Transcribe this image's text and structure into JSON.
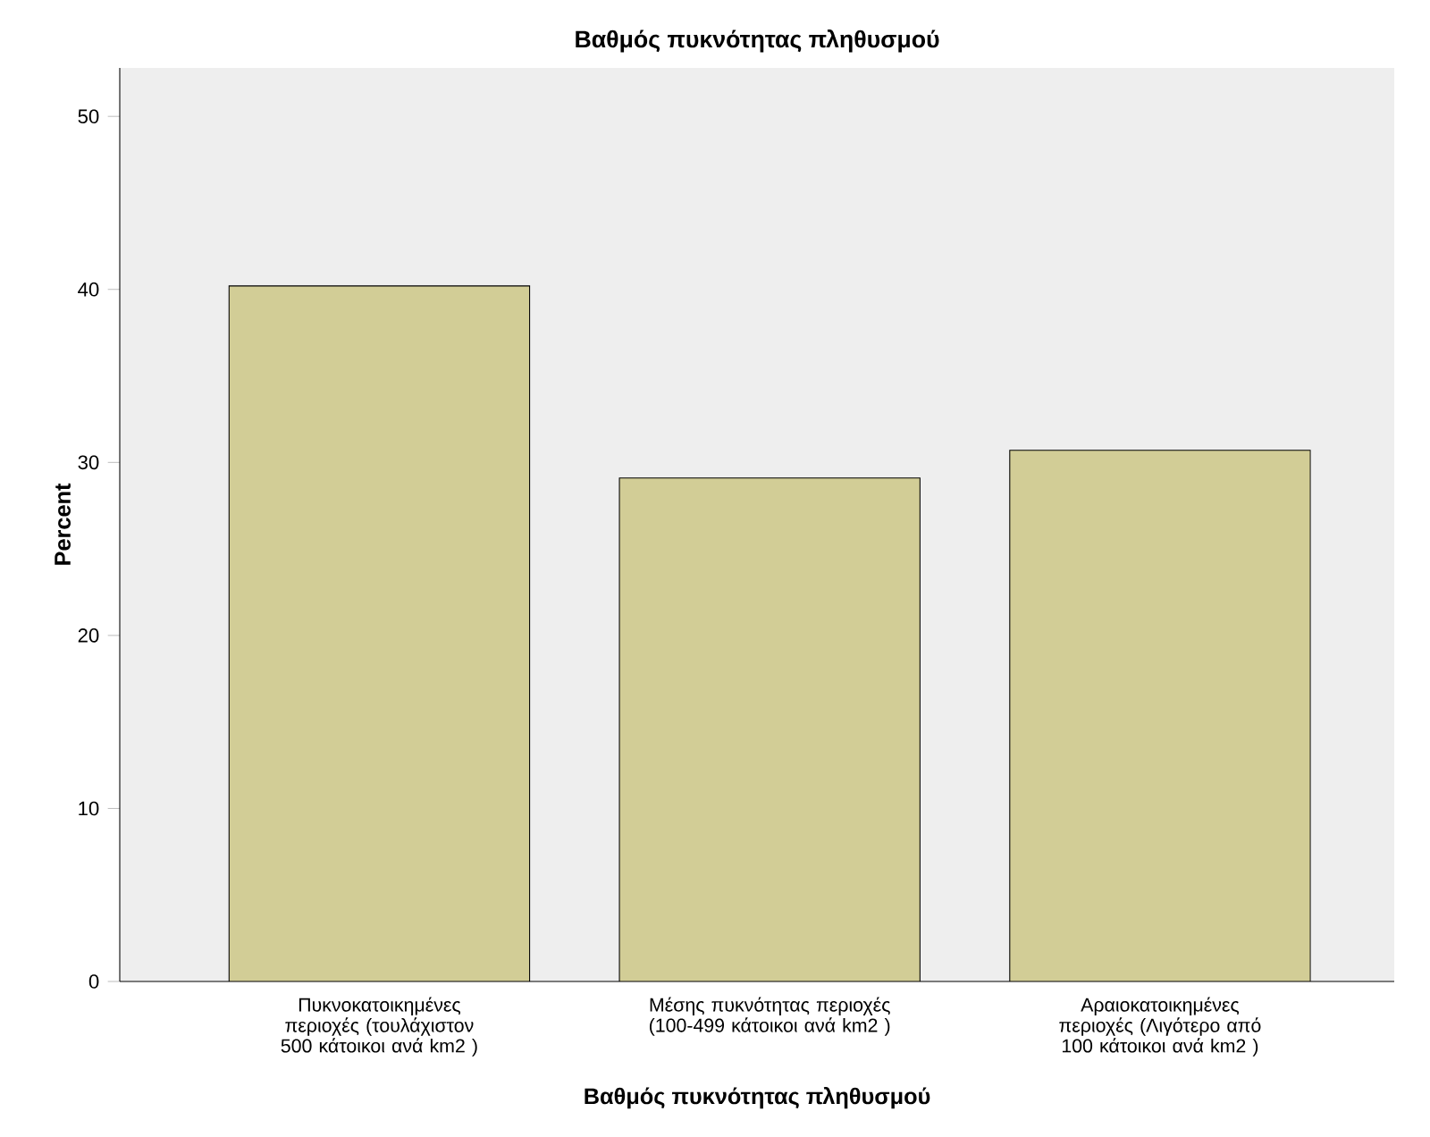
{
  "chart_data": {
    "type": "bar",
    "title": "Βαθμός πυκνότητας πληθυσμού",
    "xlabel": "Βαθμός πυκνότητας πληθυσμού",
    "ylabel": "Percent",
    "categories": [
      "Πυκνοκατοικημένες περιοχές (τουλάχιστον 500 κάτοικοι ανά km2 )",
      "Μέσης πυκνότητας περιοχές (100-499 κάτοικοι ανά km2 )",
      "Αραιοκατοικημένες περιοχές (Λιγότερο από 100 κάτοικοι ανά km2 )"
    ],
    "values": [
      40.2,
      29.1,
      30.7
    ],
    "color": "#d2cd96",
    "ylim": [
      0,
      52.8
    ],
    "yticks": [
      0,
      10,
      20,
      30,
      40,
      50
    ]
  }
}
